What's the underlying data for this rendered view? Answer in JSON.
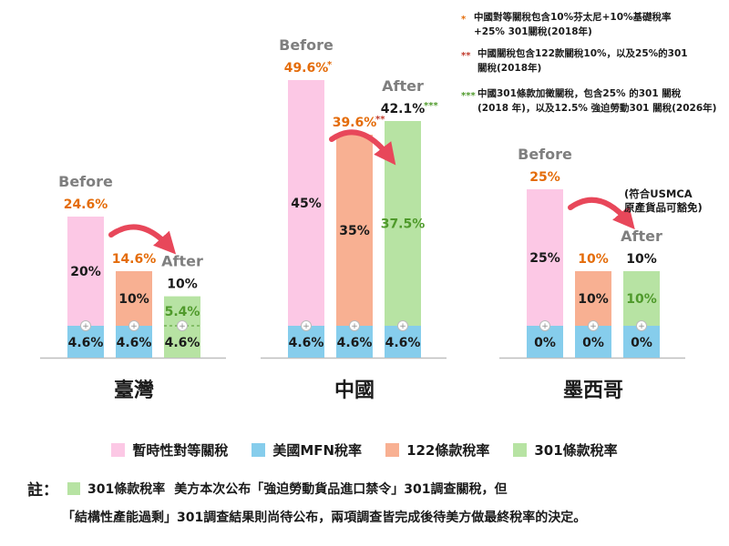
{
  "chart_data": {
    "type": "bar",
    "stacked": true,
    "colors": {
      "reciprocal": "#fcc8e5",
      "mfn": "#86cdec",
      "s122": "#f8b092",
      "s301": "#b7e3a3",
      "before_label": "#7f7f7f",
      "after_label": "#7f7f7f",
      "total_orange": "#e46c0a",
      "green_text": "#4f9a2b",
      "arrow": "#e8475a"
    },
    "groups": [
      {
        "name": "臺灣",
        "bars": [
          {
            "stage": "Before",
            "total": "24.6%",
            "segments": [
              {
                "series": "mfn",
                "value": 4.6,
                "label": "4.6%",
                "plus": true
              },
              {
                "series": "reciprocal",
                "value": 20,
                "label": "20%"
              }
            ]
          },
          {
            "stage": "",
            "total": "14.6%",
            "segments": [
              {
                "series": "mfn",
                "value": 4.6,
                "label": "4.6%",
                "plus": true
              },
              {
                "series": "s122",
                "value": 10,
                "label": "10%"
              }
            ]
          },
          {
            "stage": "After",
            "total": "10%",
            "segments": [
              {
                "series": "s301",
                "value": 4.6,
                "label": "4.6%",
                "plus": true,
                "dashed": true
              },
              {
                "series": "s301",
                "value": 5.4,
                "label": "5.4%"
              }
            ]
          }
        ]
      },
      {
        "name": "中國",
        "bars": [
          {
            "stage": "Before",
            "total": "49.6%",
            "mark": "*",
            "segments": [
              {
                "series": "mfn",
                "value": 4.6,
                "label": "4.6%",
                "plus": true
              },
              {
                "series": "reciprocal",
                "value": 45,
                "label": "45%"
              }
            ]
          },
          {
            "stage": "",
            "total": "39.6%",
            "mark": "**",
            "segments": [
              {
                "series": "mfn",
                "value": 4.6,
                "label": "4.6%",
                "plus": true
              },
              {
                "series": "s122",
                "value": 35,
                "label": "35%"
              }
            ]
          },
          {
            "stage": "After",
            "total": "42.1%",
            "mark": "***",
            "segments": [
              {
                "series": "mfn",
                "value": 4.6,
                "label": "4.6%",
                "plus": true
              },
              {
                "series": "s301",
                "value": 37.5,
                "label": "37.5%"
              }
            ]
          }
        ]
      },
      {
        "name": "墨西哥",
        "bars": [
          {
            "stage": "Before",
            "total": "25%",
            "segments": [
              {
                "series": "mfn",
                "value": 0,
                "label": "0%",
                "plus": true
              },
              {
                "series": "reciprocal",
                "value": 25,
                "label": "25%"
              }
            ]
          },
          {
            "stage": "",
            "total": "10%",
            "segments": [
              {
                "series": "mfn",
                "value": 0,
                "label": "0%",
                "plus": true
              },
              {
                "series": "s122",
                "value": 10,
                "label": "10%"
              }
            ]
          },
          {
            "stage": "After",
            "total": "10%",
            "segments": [
              {
                "series": "mfn",
                "value": 0,
                "label": "0%",
                "plus": true
              },
              {
                "series": "s301",
                "value": 10,
                "label": "10%"
              }
            ]
          }
        ]
      }
    ],
    "annotations": {
      "mexico_exempt": [
        "(符合USMCA",
        "原產貨品可豁免)"
      ],
      "footnotes": [
        {
          "mark": "*",
          "lines": [
            "中國對等關稅包含10%芬太尼+10%基礎稅率",
            "+25% 301關稅(2018年)"
          ]
        },
        {
          "mark": "**",
          "lines": [
            "中國關稅包含122款關稅10%，以及25%的301",
            "關稅(2018年)"
          ]
        },
        {
          "mark": "***",
          "lines": [
            "中國301條款加徵關稅，包含25% 的301 關稅",
            "(2018 年)，以及12.5% 強迫勞動301 關稅(2026年)"
          ]
        }
      ]
    }
  },
  "legend": [
    {
      "label": "暫時性對等關稅",
      "color": "#fcc8e5"
    },
    {
      "label": "美國MFN稅率",
      "color": "#86cdec"
    },
    {
      "label": "122條款稅率",
      "color": "#f8b092"
    },
    {
      "label": "301條款稅率",
      "color": "#b7e3a3"
    }
  ],
  "note": {
    "prefix": "註：",
    "swatch_color": "#b7e3a3",
    "line1_label": "301條款稅率",
    "line1_text": "美方本次公布「強迫勞動貨品進口禁令」301調查關稅，但",
    "line2_text": "「結構性產能過剩」301調查結果則尚待公布，兩項調查皆完成後待美方做最終稅率的決定。"
  }
}
